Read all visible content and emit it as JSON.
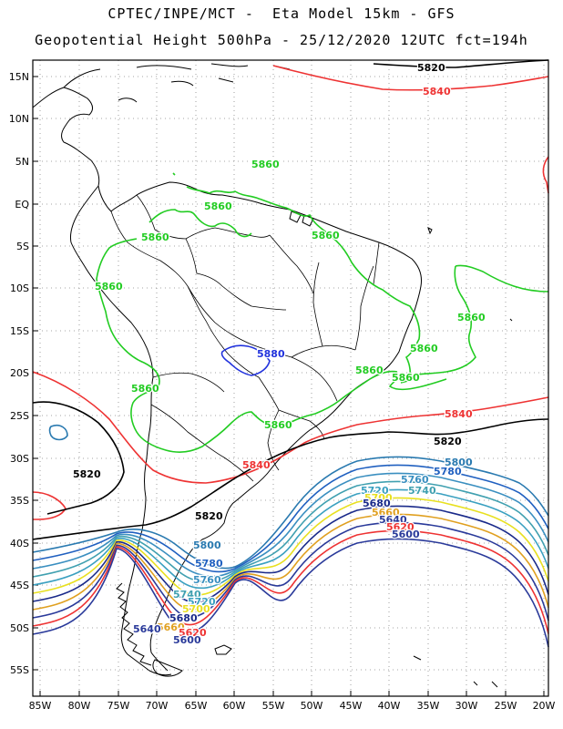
{
  "header": {
    "line1": "CPTEC/INPE/MCT -  Eta Model 15km - GFS",
    "line2": "Geopotential Height 500hPa - 25/12/2020 12UTC fct=194h"
  },
  "axes": {
    "lat_ticks": [
      "15N",
      "10N",
      "5N",
      "EQ",
      "5S",
      "10S",
      "15S",
      "20S",
      "25S",
      "30S",
      "35S",
      "40S",
      "45S",
      "50S",
      "55S"
    ],
    "lon_ticks": [
      "85W",
      "80W",
      "75W",
      "70W",
      "65W",
      "60W",
      "55W",
      "50W",
      "45W",
      "40W",
      "35W",
      "30W",
      "25W",
      "20W"
    ]
  },
  "contours": {
    "labels": {
      "l5820_top": "5820",
      "l5840_top": "5840",
      "l5860_amazon1": "5860",
      "l5860_amazon2": "5860",
      "l5860_amazon3": "5860",
      "l5860_west": "5860",
      "l5860_peru": "5860",
      "l5880_bolivia": "5880",
      "l5860_chaco": "5860",
      "l5860_chile": "5860",
      "l5860_atl1": "5860",
      "l5860_atl2": "5860",
      "l5860_atl3": "5860",
      "l5860_sbr": "5860",
      "l5840_ne": "5840",
      "l5820_ne": "5820",
      "l5840_uy": "5840",
      "l5820_w": "5820",
      "l5820_arg": "5820",
      "l5800_e": "5800",
      "l5780_e": "5780",
      "l5760_e": "5760",
      "l5740_e": "5740",
      "l5720_e": "5720",
      "l5700_e": "5700",
      "l5680_e": "5680",
      "l5660_e": "5660",
      "l5640_e": "5640",
      "l5620_e": "5620",
      "l5600_e": "5600",
      "l5800_w": "5800",
      "l5780_w": "5780",
      "l5760_w": "5760",
      "l5740_w": "5740",
      "l5720_w": "5720",
      "l5700_w": "5700",
      "l5680_w": "5680",
      "l5660_w": "5660",
      "l5640_w": "5640",
      "l5620_w": "5620",
      "l5600_w": "5600"
    },
    "colors": {
      "c5860": "#22cc22",
      "c5880": "#2233dd",
      "c5840": "#ee3333",
      "c5820": "#000000",
      "c5800": "#2a7ab0",
      "c5780": "#2060c0",
      "c5760": "#3a8fc0",
      "c5740": "#40a0b0",
      "c5720": "#3aa0c0",
      "c5700": "#e8e020",
      "c5680": "#1a2a8a",
      "c5660": "#e0a020",
      "c5640": "#2a3a9a",
      "c5620": "#ee3333",
      "c5600": "#2a3a9a"
    }
  }
}
